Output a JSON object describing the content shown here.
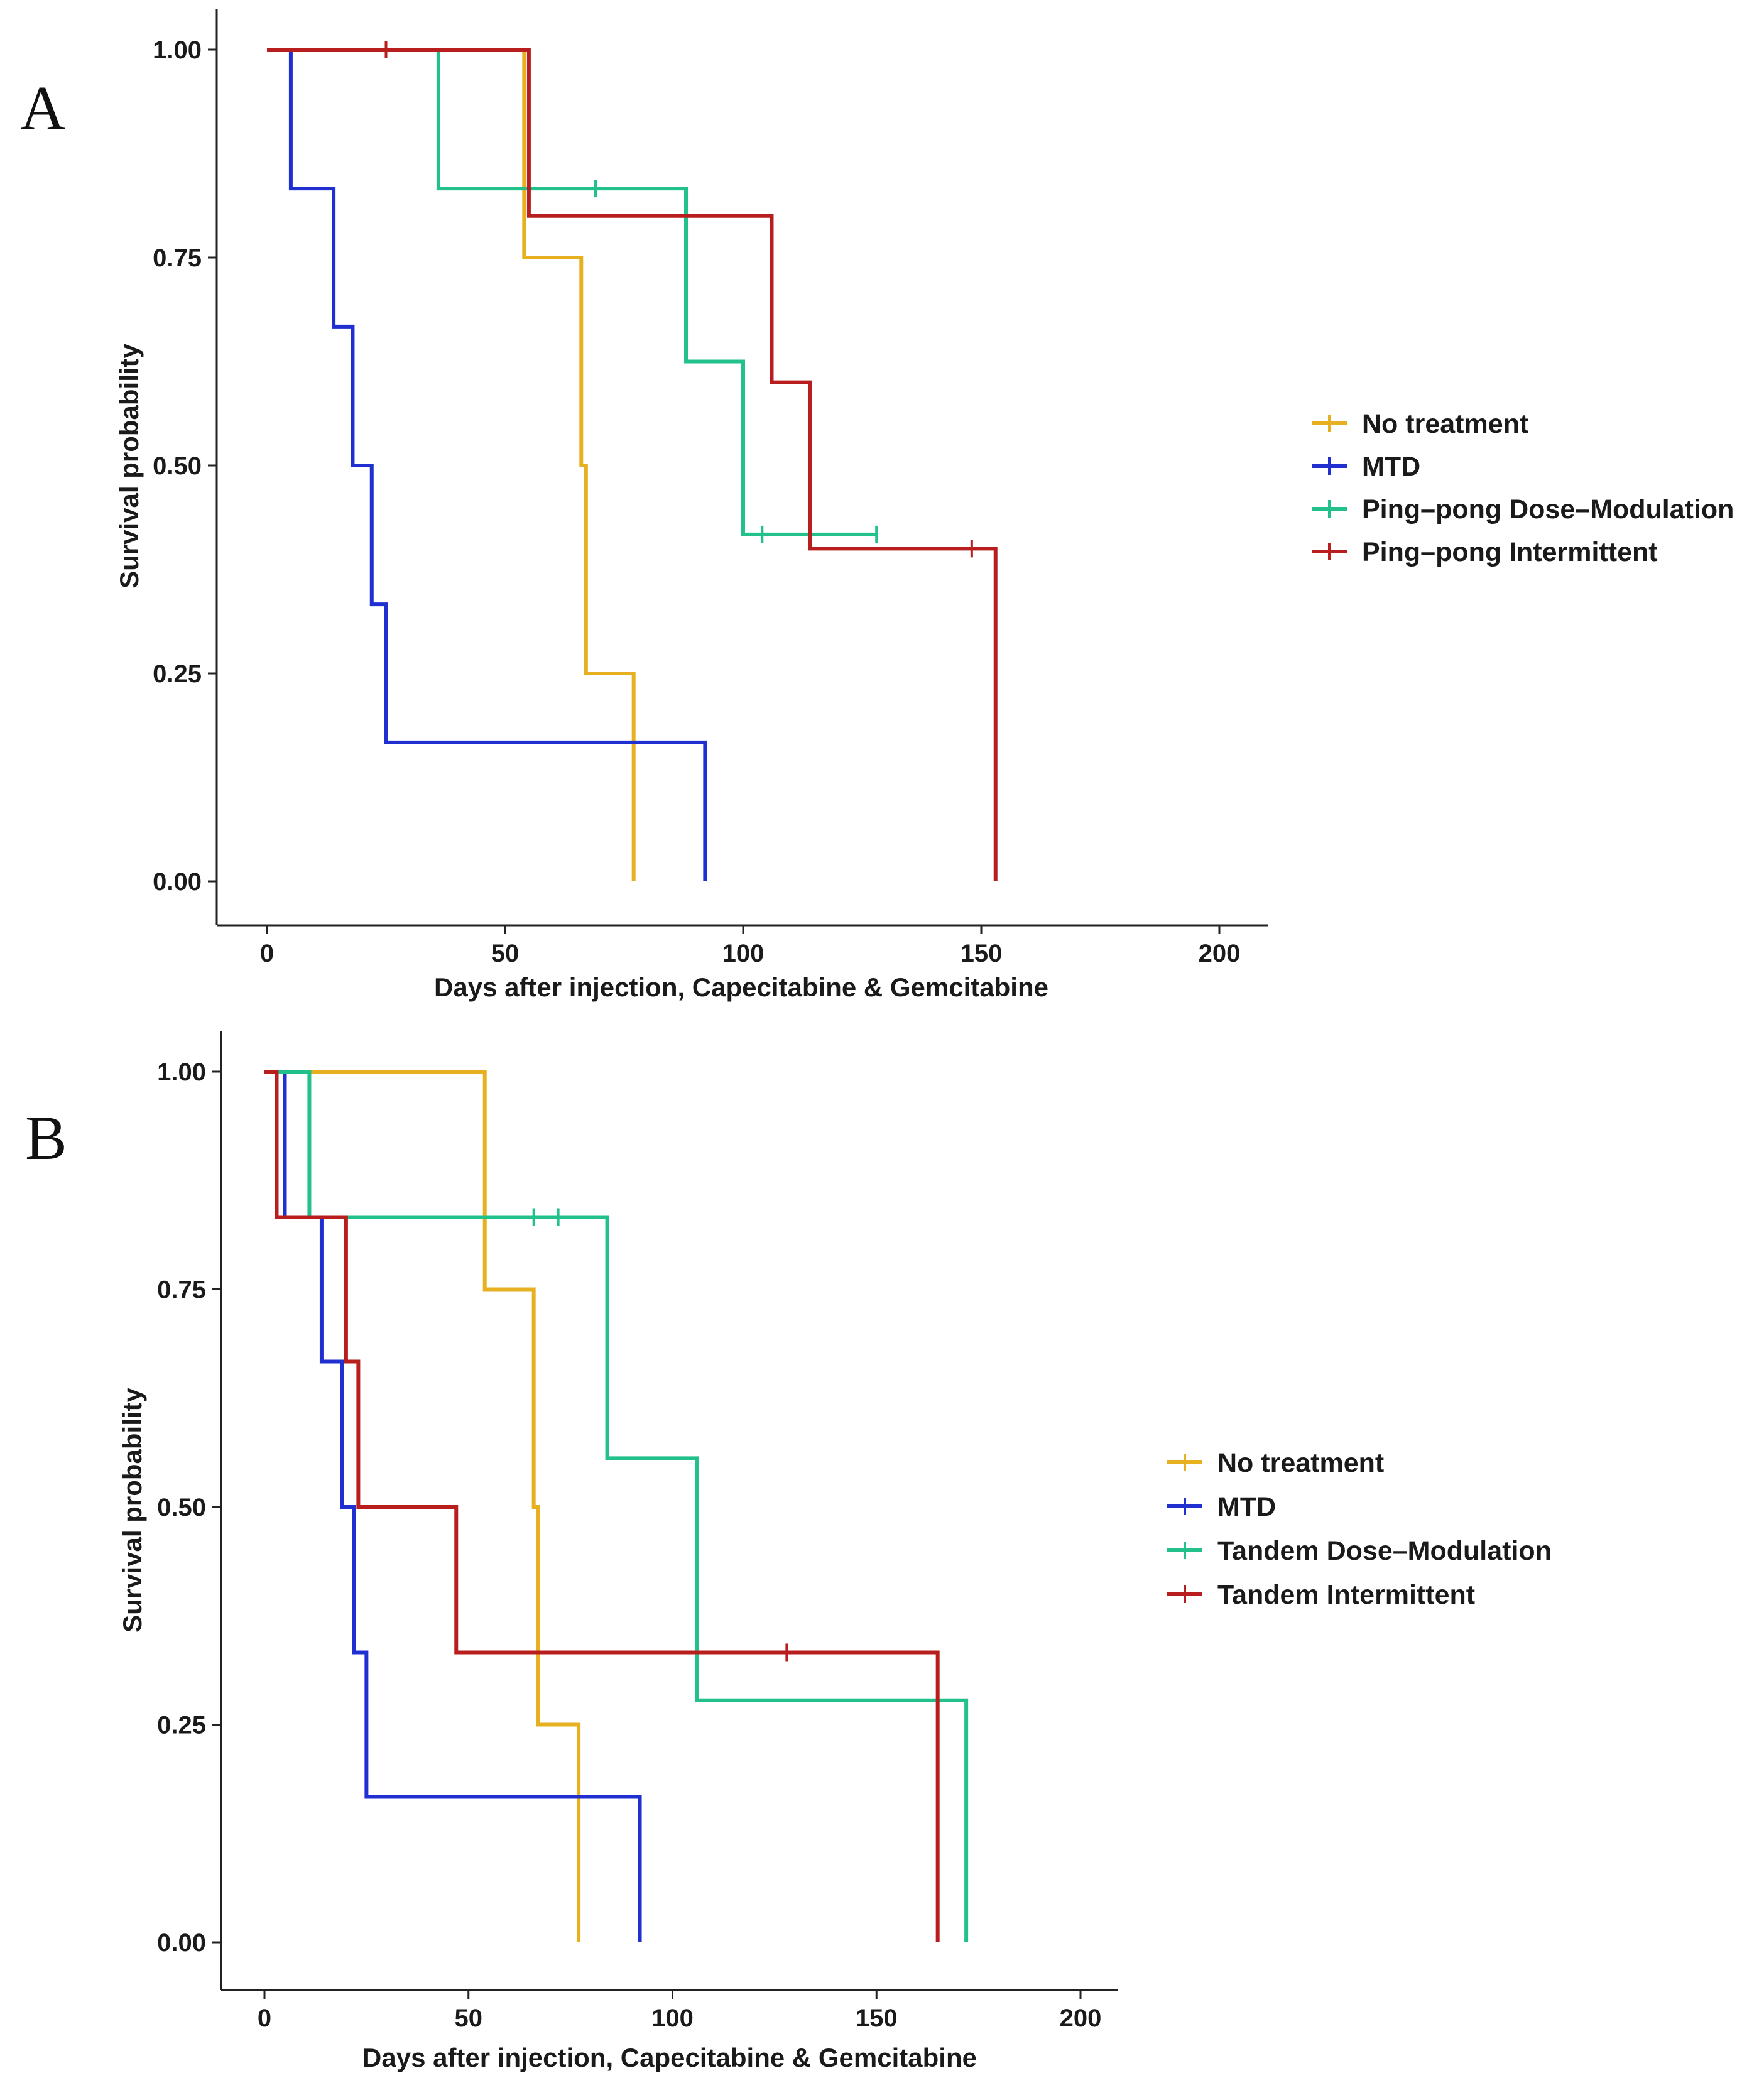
{
  "figure": {
    "panels": [
      "A",
      "B"
    ]
  },
  "chart_data": [
    {
      "type": "line",
      "subtype": "kaplan-meier step",
      "panel_label": "A",
      "title": "",
      "xlabel": "Days after injection, Capecitabine & Gemcitabine",
      "ylabel": "Survival probability",
      "xlim": [
        0,
        200
      ],
      "ylim": [
        0,
        1
      ],
      "xticks": [
        "0",
        "50",
        "100",
        "150",
        "200"
      ],
      "yticks": [
        "0.00",
        "0.25",
        "0.50",
        "0.75",
        "1.00"
      ],
      "grid": false,
      "legend_position": "right",
      "series": [
        {
          "name": "No treatment",
          "color": "#E6B020",
          "steps": [
            [
              0,
              1
            ],
            [
              54,
              0.75
            ],
            [
              66,
              0.5
            ],
            [
              67,
              0.25
            ],
            [
              77,
              0
            ]
          ],
          "censored": [
            [
              25,
              1
            ]
          ]
        },
        {
          "name": "MTD",
          "color": "#1F2FD0",
          "steps": [
            [
              0,
              1
            ],
            [
              5,
              0.833
            ],
            [
              14,
              0.667
            ],
            [
              18,
              0.5
            ],
            [
              22,
              0.333
            ],
            [
              25,
              0.167
            ],
            [
              92,
              0
            ]
          ],
          "censored": []
        },
        {
          "name": "Ping–pong Dose–Modulation",
          "color": "#22C08A",
          "steps": [
            [
              0,
              1
            ],
            [
              36,
              0.833
            ],
            [
              88,
              0.625
            ],
            [
              100,
              0.417
            ]
          ],
          "end": 128,
          "censored": [
            [
              69,
              0.833
            ],
            [
              104,
              0.417
            ],
            [
              128,
              0.417
            ]
          ]
        },
        {
          "name": "Ping–pong Intermittent",
          "color": "#B81E1E",
          "steps": [
            [
              0,
              1
            ],
            [
              55,
              0.8
            ],
            [
              106,
              0.6
            ],
            [
              114,
              0.4
            ],
            [
              153,
              0
            ]
          ],
          "censored": [
            [
              25,
              1
            ],
            [
              148,
              0.4
            ]
          ]
        }
      ]
    },
    {
      "type": "line",
      "subtype": "kaplan-meier step",
      "panel_label": "B",
      "title": "",
      "xlabel": "Days after injection, Capecitabine & Gemcitabine",
      "ylabel": "Survival probability",
      "xlim": [
        0,
        200
      ],
      "ylim": [
        0,
        1
      ],
      "xticks": [
        "0",
        "50",
        "100",
        "150",
        "200"
      ],
      "yticks": [
        "0.00",
        "0.25",
        "0.50",
        "0.75",
        "1.00"
      ],
      "grid": false,
      "legend_position": "right",
      "series": [
        {
          "name": "No treatment",
          "color": "#E6B020",
          "steps": [
            [
              0,
              1
            ],
            [
              54,
              0.75
            ],
            [
              66,
              0.5
            ],
            [
              67,
              0.25
            ],
            [
              77,
              0
            ]
          ],
          "censored": []
        },
        {
          "name": "MTD",
          "color": "#1F2FD0",
          "steps": [
            [
              0,
              1
            ],
            [
              5,
              0.833
            ],
            [
              14,
              0.667
            ],
            [
              19,
              0.5
            ],
            [
              22,
              0.333
            ],
            [
              25,
              0.167
            ],
            [
              92,
              0
            ]
          ],
          "censored": []
        },
        {
          "name": "Tandem Dose–Modulation",
          "color": "#22C08A",
          "steps": [
            [
              0,
              1
            ],
            [
              11,
              0.833
            ],
            [
              84,
              0.556
            ],
            [
              106,
              0.278
            ],
            [
              172,
              0
            ]
          ],
          "censored": [
            [
              66,
              0.833
            ],
            [
              72,
              0.833
            ]
          ]
        },
        {
          "name": "Tandem Intermittent",
          "color": "#B81E1E",
          "steps": [
            [
              0,
              1
            ],
            [
              3,
              0.833
            ],
            [
              20,
              0.667
            ],
            [
              23,
              0.5
            ],
            [
              47,
              0.333
            ],
            [
              165,
              0
            ]
          ],
          "censored": [
            [
              128,
              0.333
            ]
          ]
        }
      ]
    }
  ]
}
